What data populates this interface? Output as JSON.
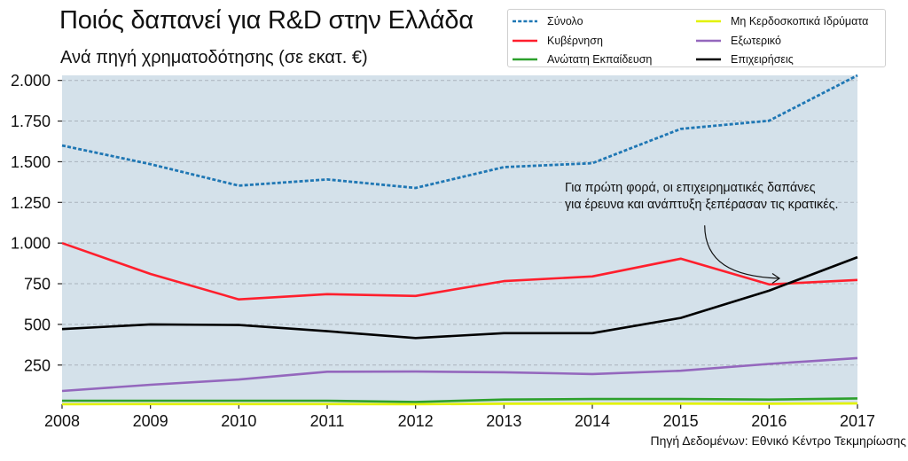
{
  "header": {
    "title": "Ποιός δαπανεί για R&D στην Ελλάδα",
    "subtitle": "Ανά πηγή χρηματοδότησης (σε εκατ. €)"
  },
  "annotation": {
    "lines": [
      "Για πρώτη φορά, οι επιχειρηματικές δαπάνες",
      "για έρευνα και ανάπτυξη ξεπέρασαν τις κρατικές."
    ]
  },
  "source": "Πηγή Δεδομένων: Εθνικό Κέντρο Τεκμηρίωσης",
  "chart_data": {
    "type": "line",
    "title": "Ποιός δαπανεί για R&D στην Ελλάδα",
    "subtitle": "Ανά πηγή χρηματοδότησης (σε εκατ. €)",
    "xlabel": "",
    "ylabel": "",
    "x": [
      2008,
      2009,
      2010,
      2011,
      2012,
      2013,
      2014,
      2015,
      2016,
      2017
    ],
    "x_tick_labels": [
      "2008",
      "2009",
      "2010",
      "2011",
      "2012",
      "2013",
      "2014",
      "2015",
      "2016",
      "2017"
    ],
    "y_ticks": [
      250,
      500,
      750,
      1000,
      1250,
      1500,
      1750,
      2000
    ],
    "y_tick_labels": [
      "250",
      "500",
      "750",
      "1.000",
      "1.250",
      "1.500",
      "1.750",
      "2.000"
    ],
    "xlim": [
      2008,
      2017
    ],
    "ylim": [
      9,
      2031
    ],
    "grid": "horizontal-dashed",
    "legend_position": "top-right",
    "plot_background": "#d4e1ea",
    "series": [
      {
        "name": "Σύνολο",
        "color": "#1f77b4",
        "style": "dotted",
        "values": [
          1600,
          1485,
          1353,
          1391,
          1339,
          1467,
          1491,
          1702,
          1752,
          2031
        ]
      },
      {
        "name": "Κυβέρνηση",
        "color": "#ff1f2d",
        "style": "solid",
        "values": [
          1000,
          810,
          654,
          686,
          675,
          766,
          795,
          904,
          746,
          773
        ]
      },
      {
        "name": "Ανώτατη Εκπαίδευση",
        "color": "#2ca02c",
        "style": "solid",
        "values": [
          31,
          31,
          31,
          31,
          23,
          38,
          41,
          41,
          38,
          45
        ]
      },
      {
        "name": "Μη Κερδοσκοπικά Ιδρύματα",
        "color": "#e2f200",
        "style": "solid",
        "values": [
          9,
          10,
          10,
          10,
          9,
          12,
          13,
          13,
          12,
          14
        ]
      },
      {
        "name": "Εξωτερικό",
        "color": "#9467bd",
        "style": "solid",
        "values": [
          91,
          129,
          161,
          209,
          210,
          206,
          195,
          215,
          257,
          293
        ]
      },
      {
        "name": "Επιχειρήσεις",
        "color": "#000000",
        "style": "solid",
        "values": [
          471,
          500,
          496,
          458,
          416,
          446,
          446,
          540,
          707,
          913
        ]
      }
    ],
    "annotations": [
      {
        "text": "Για πρώτη φορά, οι επιχειρηματικές δαπάνες για έρευνα και ανάπτυξη ξεπέρασαν τις κρατικές.",
        "points_to": {
          "x": 2016.1,
          "y": 760
        }
      }
    ]
  }
}
